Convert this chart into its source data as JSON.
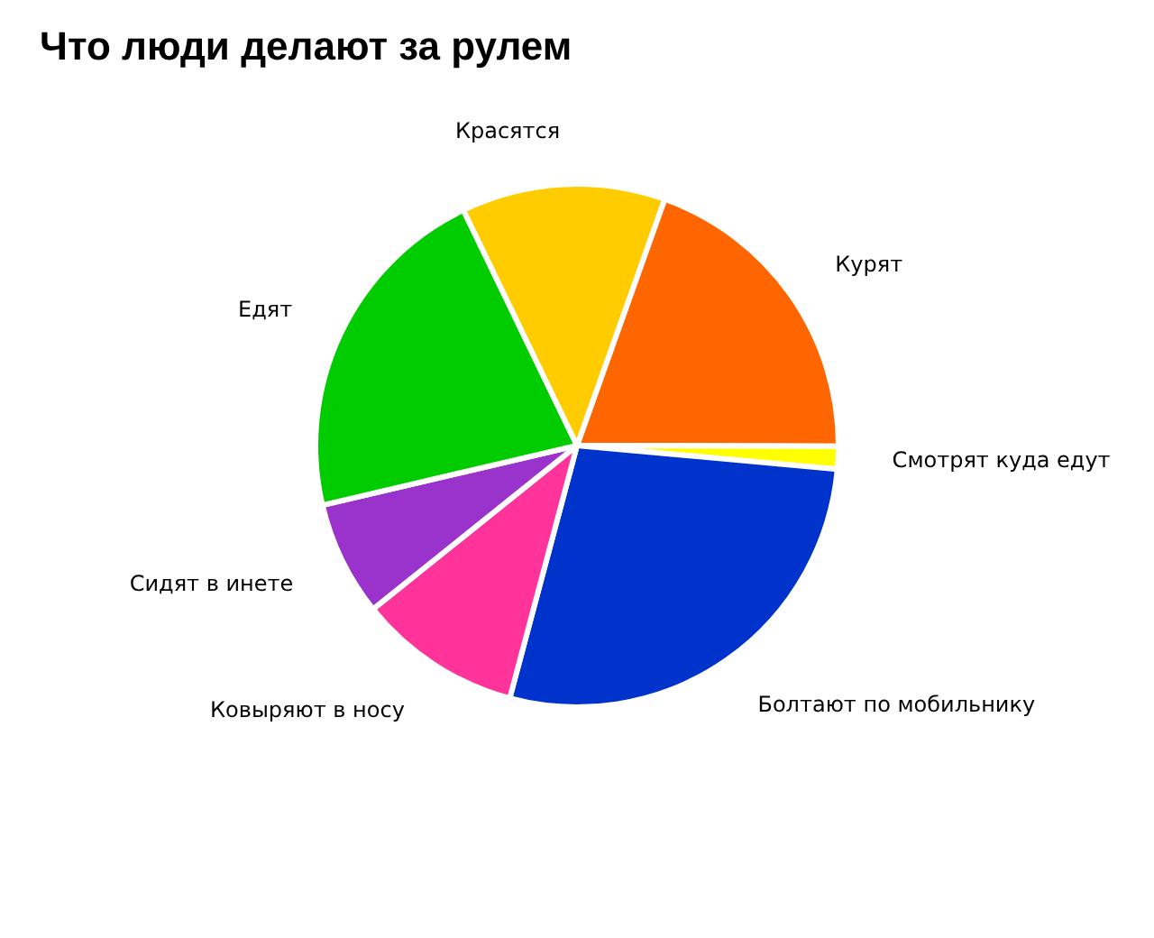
{
  "chart_data": {
    "type": "pie",
    "title": "Что люди делают за рулем",
    "categories": [
      "Курят",
      "Смотрят куда едут",
      "Болтают по мобильнику",
      "Ковыряют в носу",
      "Сидят в инете",
      "Едят",
      "Красятся"
    ],
    "values": [
      19.6,
      1.4,
      27.7,
      10.1,
      7.1,
      21.5,
      12.6
    ],
    "colors": [
      "#ff6600",
      "#ffff00",
      "#0033cc",
      "#ff3399",
      "#9933cc",
      "#00cc00",
      "#ffcc00"
    ],
    "legend": false
  }
}
